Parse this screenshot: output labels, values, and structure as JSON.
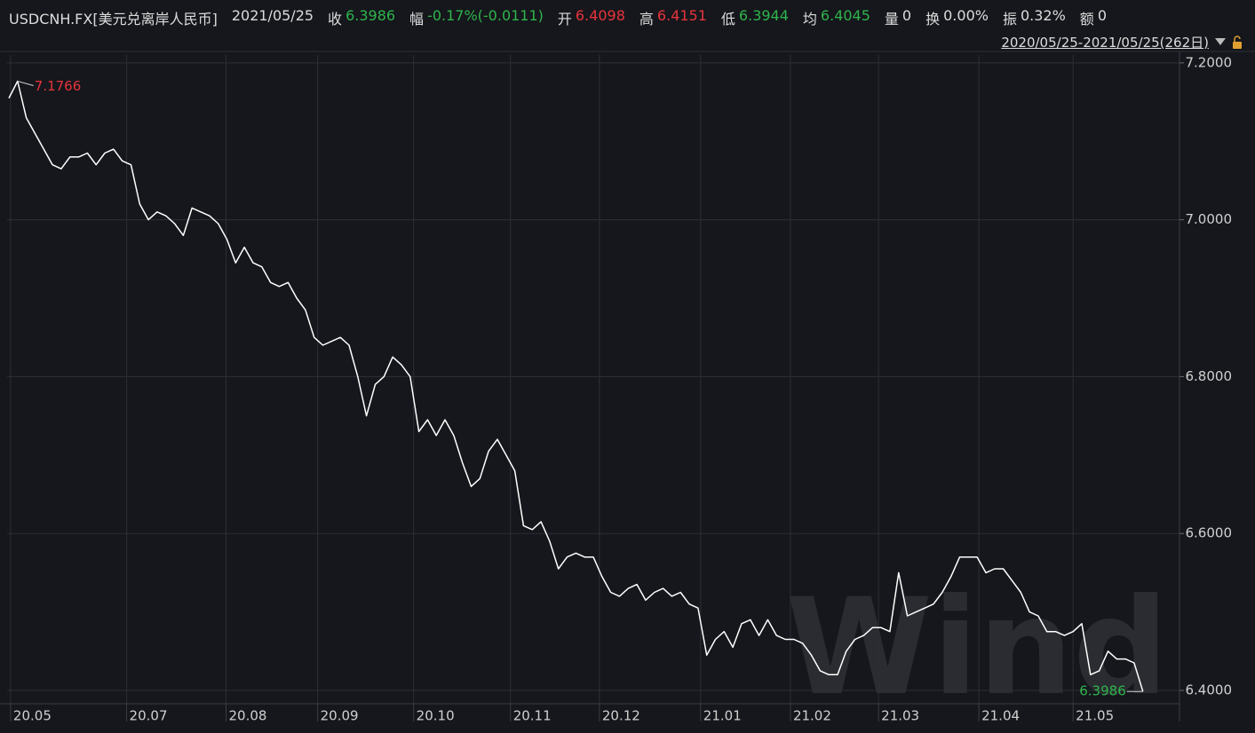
{
  "header": {
    "symbol": "USDCNH.FX[美元兑离岸人民币]",
    "date": "2021/05/25",
    "fields": [
      {
        "label": "收",
        "value": "6.3986",
        "color": "#2fb44c"
      },
      {
        "label": "幅",
        "value": "-0.17%(-0.0111)",
        "color": "#2fb44c"
      },
      {
        "label": "开",
        "value": "6.4098",
        "color": "#e8343c"
      },
      {
        "label": "高",
        "value": "6.4151",
        "color": "#e8343c"
      },
      {
        "label": "低",
        "value": "6.3944",
        "color": "#2fb44c"
      },
      {
        "label": "均",
        "value": "6.4045",
        "color": "#2fb44c"
      },
      {
        "label": "量",
        "value": "0",
        "color": "#dcdcdc"
      },
      {
        "label": "换",
        "value": "0.00%",
        "color": "#dcdcdc"
      },
      {
        "label": "振",
        "value": "0.32%",
        "color": "#dcdcdc"
      },
      {
        "label": "额",
        "value": "0",
        "color": "#dcdcdc"
      }
    ],
    "range": "2020/05/25-2021/05/25(262日)"
  },
  "watermark": "Wind",
  "chart_data": {
    "type": "line",
    "color": "#ffffff",
    "grid": true,
    "values": [
      7.155,
      7.1766,
      7.13,
      7.11,
      7.09,
      7.07,
      7.065,
      7.08,
      7.08,
      7.085,
      7.07,
      7.085,
      7.09,
      7.075,
      7.07,
      7.02,
      7.0,
      7.01,
      7.005,
      6.995,
      6.98,
      7.015,
      7.01,
      7.005,
      6.995,
      6.975,
      6.945,
      6.965,
      6.945,
      6.94,
      6.92,
      6.915,
      6.92,
      6.9,
      6.885,
      6.85,
      6.84,
      6.845,
      6.85,
      6.84,
      6.8,
      6.75,
      6.79,
      6.8,
      6.825,
      6.815,
      6.8,
      6.73,
      6.745,
      6.725,
      6.745,
      6.725,
      6.69,
      6.66,
      6.67,
      6.705,
      6.72,
      6.7,
      6.68,
      6.61,
      6.605,
      6.615,
      6.59,
      6.555,
      6.57,
      6.575,
      6.57,
      6.57,
      6.545,
      6.525,
      6.52,
      6.53,
      6.535,
      6.515,
      6.525,
      6.53,
      6.52,
      6.525,
      6.51,
      6.505,
      6.445,
      6.465,
      6.475,
      6.455,
      6.485,
      6.49,
      6.47,
      6.49,
      6.47,
      6.465,
      6.465,
      6.46,
      6.445,
      6.425,
      6.42,
      6.42,
      6.45,
      6.465,
      6.47,
      6.48,
      6.48,
      6.475,
      6.55,
      6.495,
      6.5,
      6.505,
      6.51,
      6.525,
      6.545,
      6.57,
      6.57,
      6.57,
      6.55,
      6.555,
      6.555,
      6.54,
      6.525,
      6.5,
      6.495,
      6.475,
      6.475,
      6.47,
      6.475,
      6.485,
      6.42,
      6.425,
      6.45,
      6.44,
      6.44,
      6.435,
      6.3986
    ],
    "high_index": 1,
    "high_color": "#e8343c",
    "low_index": 130,
    "low_color": "#2fb44c",
    "xlim": [
      -0.2,
      134.2
    ],
    "xticks": [
      {
        "value": 0.2,
        "label": "20.05"
      },
      {
        "value": 13.5,
        "label": "20.07"
      },
      {
        "value": 24.9,
        "label": "20.08"
      },
      {
        "value": 35.4,
        "label": "20.09"
      },
      {
        "value": 46.4,
        "label": "20.10"
      },
      {
        "value": 57.5,
        "label": "20.11"
      },
      {
        "value": 67.7,
        "label": "20.12"
      },
      {
        "value": 79.3,
        "label": "21.01"
      },
      {
        "value": 89.6,
        "label": "21.02"
      },
      {
        "value": 99.7,
        "label": "21.03"
      },
      {
        "value": 111.2,
        "label": "21.04"
      },
      {
        "value": 122.0,
        "label": "21.05"
      }
    ],
    "ylim": [
      6.383,
      7.21
    ],
    "yticks": [
      {
        "value": 6.4,
        "label": "6.4000"
      },
      {
        "value": 6.6,
        "label": "6.6000"
      },
      {
        "value": 6.8,
        "label": "6.8000"
      },
      {
        "value": 7.0,
        "label": "7.0000"
      },
      {
        "value": 7.2,
        "label": "7.2000"
      }
    ]
  }
}
